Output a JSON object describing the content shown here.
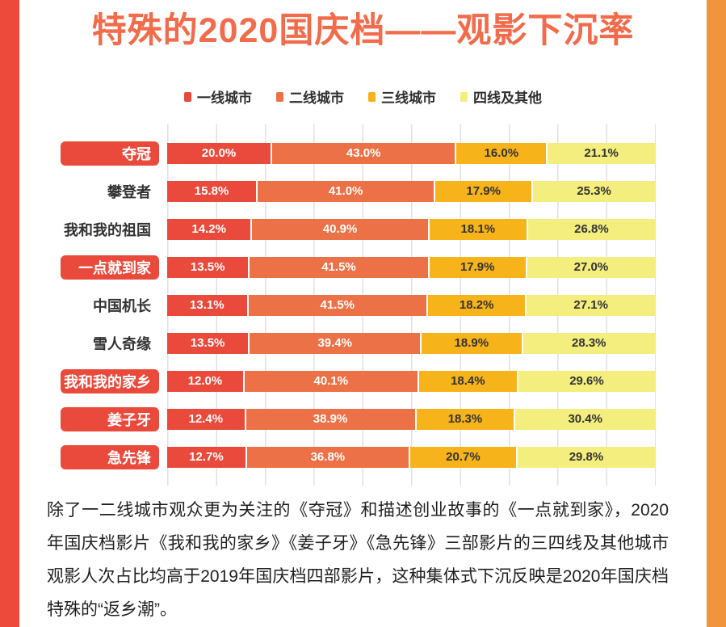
{
  "title": "特殊的2020国庆档——观影下沉率",
  "legend": [
    {
      "label": "一线城市",
      "color": "#EA4A3B"
    },
    {
      "label": "二线城市",
      "color": "#ED7146"
    },
    {
      "label": "三线城市",
      "color": "#F7B31A"
    },
    {
      "label": "四线及其他",
      "color": "#F3EE7E"
    }
  ],
  "chart_data": {
    "type": "bar",
    "orientation": "horizontal",
    "stacked": true,
    "unit": "%",
    "xlim": [
      0,
      100
    ],
    "grid": true,
    "grid_step_percent": 10,
    "categories": [
      "夺冠",
      "攀登者",
      "我和我的祖国",
      "一点就到家",
      "中国机长",
      "雪人奇缘",
      "我和我的家乡",
      "姜子牙",
      "急先锋"
    ],
    "highlighted_categories": [
      "夺冠",
      "一点就到家",
      "我和我的家乡",
      "姜子牙",
      "急先锋"
    ],
    "series": [
      {
        "name": "一线城市",
        "color": "#EA4A3B",
        "label_color": "#FFFFFF",
        "values": [
          20.0,
          15.8,
          14.2,
          13.5,
          13.1,
          13.5,
          12.0,
          12.4,
          12.7
        ]
      },
      {
        "name": "二线城市",
        "color": "#ED7146",
        "label_color": "#FFFFFF",
        "values": [
          43.0,
          41.0,
          40.9,
          41.5,
          41.5,
          39.4,
          40.1,
          38.9,
          36.8
        ]
      },
      {
        "name": "三线城市",
        "color": "#F7B31A",
        "label_color": "#333333",
        "values": [
          16.0,
          17.9,
          18.1,
          17.9,
          18.2,
          18.9,
          18.4,
          18.3,
          20.7
        ]
      },
      {
        "name": "四线及其他",
        "color": "#F3EE7E",
        "label_color": "#333333",
        "values": [
          21.1,
          25.3,
          26.8,
          27.0,
          27.1,
          28.3,
          29.6,
          30.4,
          29.8
        ]
      }
    ]
  },
  "caption": "除了一二线城市观众更为关注的《夺冠》和描述创业故事的《一点就到家》，2020年国庆档影片《我和我的家乡》《姜子牙》《急先锋》三部影片的三四线及其他城市观影人次占比均高于2019年国庆档四部影片，这种集体式下沉反映是2020年国庆档特殊的“返乡潮”。",
  "colors": {
    "title": "#F26B4B",
    "left_edge": "#EE4A3B",
    "right_edge": "#F0943D",
    "highlight_box": "#EA4A3B",
    "gridline": "#E1E1E1"
  }
}
